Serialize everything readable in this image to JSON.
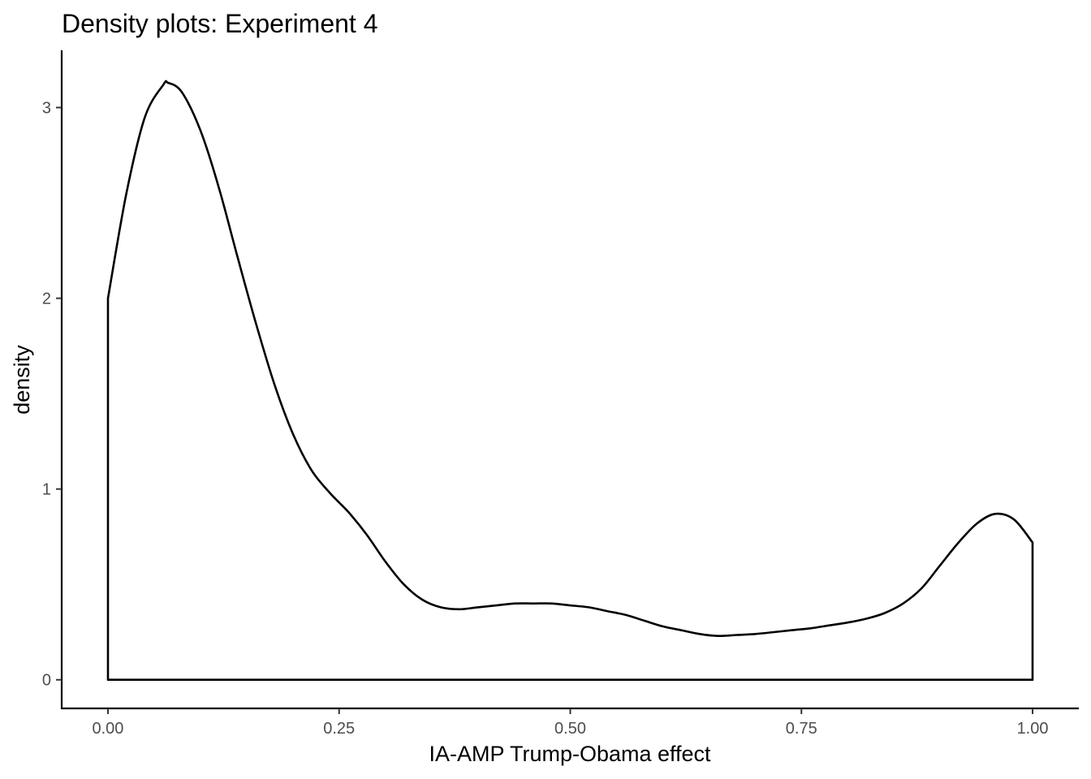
{
  "chart_data": {
    "type": "area",
    "title": "Density plots: Experiment 4",
    "xlabel": "IA-AMP Trump-Obama effect",
    "ylabel": "density",
    "xlim": [
      -0.05,
      1.05
    ],
    "ylim": [
      -0.15,
      3.3
    ],
    "x_ticks": [
      0.0,
      0.25,
      0.5,
      0.75,
      1.0
    ],
    "x_tick_labels": [
      "0.00",
      "0.25",
      "0.50",
      "0.75",
      "1.00"
    ],
    "y_ticks": [
      0,
      1,
      2,
      3
    ],
    "y_tick_labels": [
      "0",
      "1",
      "2",
      "3"
    ],
    "grid": false,
    "legend": "none",
    "line_color": "#000000",
    "fill": "none",
    "series": [
      {
        "x": [
          0.0,
          0.02,
          0.04,
          0.06,
          0.065,
          0.08,
          0.1,
          0.12,
          0.14,
          0.16,
          0.18,
          0.2,
          0.22,
          0.24,
          0.26,
          0.28,
          0.3,
          0.32,
          0.34,
          0.36,
          0.38,
          0.4,
          0.42,
          0.44,
          0.46,
          0.48,
          0.5,
          0.52,
          0.54,
          0.56,
          0.58,
          0.6,
          0.62,
          0.64,
          0.66,
          0.68,
          0.7,
          0.72,
          0.74,
          0.76,
          0.78,
          0.8,
          0.82,
          0.84,
          0.86,
          0.88,
          0.9,
          0.92,
          0.94,
          0.96,
          0.98,
          1.0
        ],
        "y": [
          2.0,
          2.55,
          2.95,
          3.12,
          3.13,
          3.08,
          2.88,
          2.58,
          2.22,
          1.87,
          1.55,
          1.29,
          1.1,
          0.98,
          0.88,
          0.76,
          0.62,
          0.5,
          0.42,
          0.38,
          0.37,
          0.38,
          0.39,
          0.4,
          0.4,
          0.4,
          0.39,
          0.38,
          0.36,
          0.34,
          0.31,
          0.28,
          0.26,
          0.24,
          0.23,
          0.235,
          0.24,
          0.25,
          0.26,
          0.27,
          0.285,
          0.3,
          0.32,
          0.35,
          0.4,
          0.48,
          0.6,
          0.72,
          0.82,
          0.87,
          0.84,
          0.72
        ]
      }
    ]
  }
}
